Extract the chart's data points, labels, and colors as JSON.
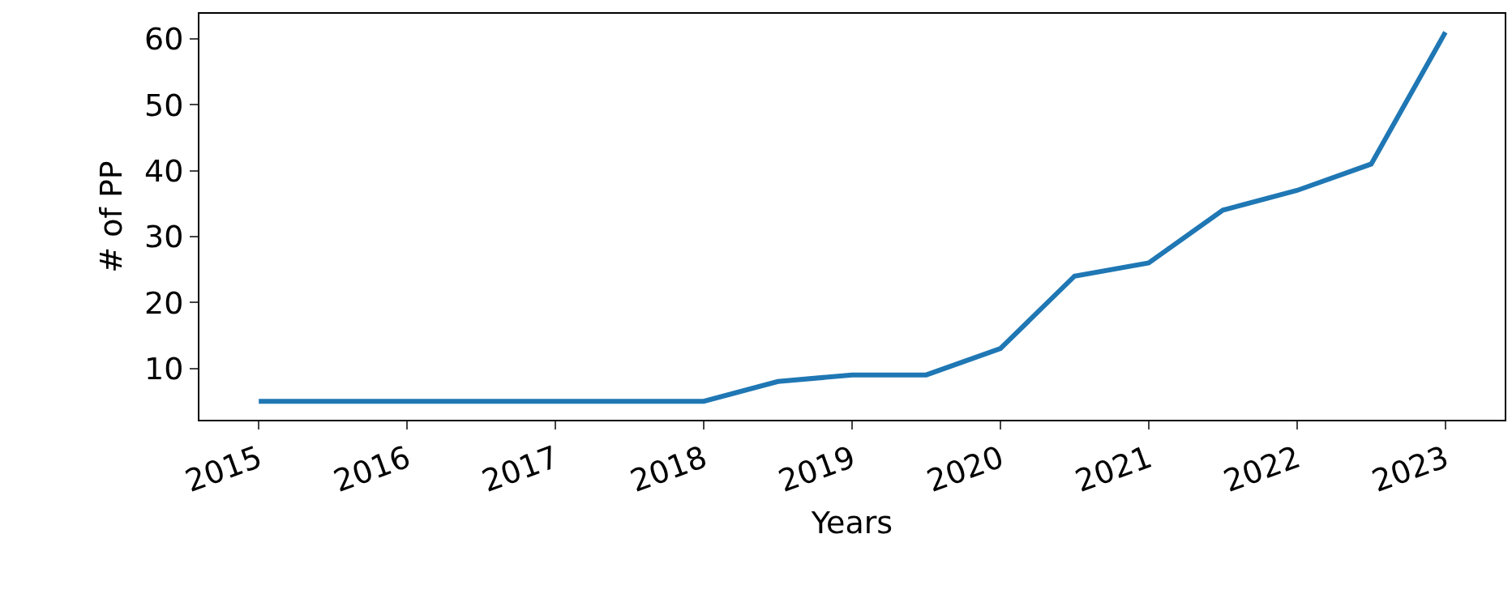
{
  "chart_data": {
    "type": "line",
    "xlabel": "Years",
    "ylabel": "# of PP",
    "x": [
      2015,
      2015.5,
      2016,
      2016.5,
      2017,
      2017.5,
      2018,
      2018.5,
      2019,
      2019.5,
      2020,
      2020.5,
      2021,
      2021.5,
      2022,
      2022.5,
      2023
    ],
    "series": [
      {
        "color": "#1f77b4",
        "values": [
          5,
          5,
          5,
          5,
          5,
          5,
          5,
          8,
          9,
          9,
          13,
          24,
          26,
          34,
          37,
          41,
          61
        ]
      }
    ],
    "xlim": [
      2014.6,
      2023.4
    ],
    "ylim": [
      2.2,
      63.8
    ],
    "xticks": [
      2015,
      2016,
      2017,
      2018,
      2019,
      2020,
      2021,
      2022,
      2023
    ],
    "yticks": [
      10,
      20,
      30,
      40,
      50,
      60
    ],
    "grid": false,
    "marker": "none",
    "line_style": "solid"
  }
}
